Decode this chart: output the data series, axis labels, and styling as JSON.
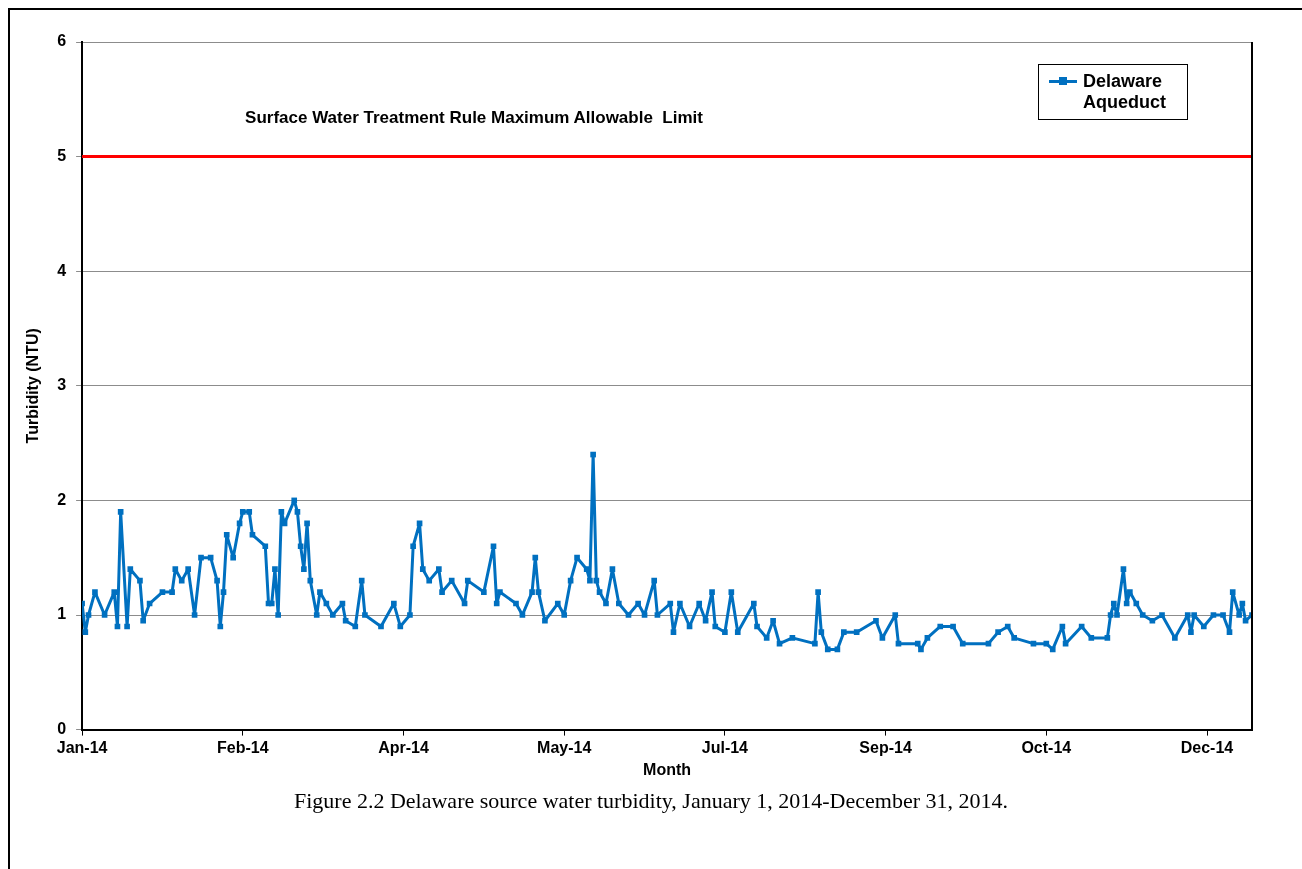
{
  "chart_data": {
    "type": "line",
    "xlabel": "Month",
    "ylabel": "Turbidity (NTU)",
    "annotations": [
      "Figure 2.2 Delaware source water turbidity, January 1, 2014-December 31, 2014."
    ],
    "ylim": [
      0,
      6
    ],
    "yticks": [
      0,
      1,
      2,
      3,
      4,
      5,
      6
    ],
    "xlim": [
      "2014-01-01",
      "2014-12-31"
    ],
    "xticks": [
      {
        "value": "2014-01-01",
        "label": "Jan-14"
      },
      {
        "value": "2014-02-20",
        "label": "Feb-14"
      },
      {
        "value": "2014-04-11",
        "label": "Apr-14"
      },
      {
        "value": "2014-05-31",
        "label": "May-14"
      },
      {
        "value": "2014-07-20",
        "label": "Jul-14"
      },
      {
        "value": "2014-09-08",
        "label": "Sep-14"
      },
      {
        "value": "2014-10-28",
        "label": "Oct-14"
      },
      {
        "value": "2014-12-17",
        "label": "Dec-14"
      }
    ],
    "grid": "y",
    "legend": "top right",
    "marker": "square",
    "line_style": "solid",
    "ref_lines": [
      {
        "axis": "y",
        "value": 5,
        "label": "Surface Water Treatment Rule Maximum Allowable  Limit",
        "color": "#ff0000"
      }
    ],
    "x": [
      "2014-01-01",
      "2014-01-02",
      "2014-01-03",
      "2014-01-05",
      "2014-01-08",
      "2014-01-11",
      "2014-01-12",
      "2014-01-13",
      "2014-01-15",
      "2014-01-16",
      "2014-01-19",
      "2014-01-20",
      "2014-01-22",
      "2014-01-26",
      "2014-01-29",
      "2014-01-30",
      "2014-02-01",
      "2014-02-03",
      "2014-02-05",
      "2014-02-07",
      "2014-02-10",
      "2014-02-12",
      "2014-02-13",
      "2014-02-14",
      "2014-02-15",
      "2014-02-17",
      "2014-02-19",
      "2014-02-20",
      "2014-02-22",
      "2014-02-23",
      "2014-02-27",
      "2014-02-28",
      "2014-03-01",
      "2014-03-02",
      "2014-03-03",
      "2014-03-04",
      "2014-03-05",
      "2014-03-08",
      "2014-03-09",
      "2014-03-10",
      "2014-03-11",
      "2014-03-12",
      "2014-03-13",
      "2014-03-15",
      "2014-03-16",
      "2014-03-18",
      "2014-03-20",
      "2014-03-23",
      "2014-03-24",
      "2014-03-27",
      "2014-03-29",
      "2014-03-30",
      "2014-04-04",
      "2014-04-08",
      "2014-04-10",
      "2014-04-13",
      "2014-04-14",
      "2014-04-16",
      "2014-04-17",
      "2014-04-19",
      "2014-04-22",
      "2014-04-23",
      "2014-04-26",
      "2014-04-30",
      "2014-05-01",
      "2014-05-06",
      "2014-05-09",
      "2014-05-10",
      "2014-05-11",
      "2014-05-16",
      "2014-05-18",
      "2014-05-21",
      "2014-05-22",
      "2014-05-23",
      "2014-05-25",
      "2014-05-29",
      "2014-05-31",
      "2014-06-02",
      "2014-06-04",
      "2014-06-07",
      "2014-06-08",
      "2014-06-09",
      "2014-06-10",
      "2014-06-11",
      "2014-06-13",
      "2014-06-15",
      "2014-06-17",
      "2014-06-20",
      "2014-06-23",
      "2014-06-25",
      "2014-06-28",
      "2014-06-29",
      "2014-07-03",
      "2014-07-04",
      "2014-07-06",
      "2014-07-09",
      "2014-07-12",
      "2014-07-14",
      "2014-07-16",
      "2014-07-17",
      "2014-07-20",
      "2014-07-22",
      "2014-07-24",
      "2014-07-29",
      "2014-07-30",
      "2014-08-02",
      "2014-08-04",
      "2014-08-06",
      "2014-08-10",
      "2014-08-17",
      "2014-08-18",
      "2014-08-19",
      "2014-08-21",
      "2014-08-24",
      "2014-08-26",
      "2014-08-30",
      "2014-09-05",
      "2014-09-07",
      "2014-09-11",
      "2014-09-12",
      "2014-09-18",
      "2014-09-19",
      "2014-09-21",
      "2014-09-25",
      "2014-09-29",
      "2014-10-02",
      "2014-10-10",
      "2014-10-13",
      "2014-10-16",
      "2014-10-18",
      "2014-10-24",
      "2014-10-28",
      "2014-10-30",
      "2014-11-02",
      "2014-11-03",
      "2014-11-08",
      "2014-11-11",
      "2014-11-16",
      "2014-11-17",
      "2014-11-18",
      "2014-11-19",
      "2014-11-21",
      "2014-11-22",
      "2014-11-23",
      "2014-11-25",
      "2014-11-27",
      "2014-11-30",
      "2014-12-03",
      "2014-12-07",
      "2014-12-11",
      "2014-12-12",
      "2014-12-13",
      "2014-12-16",
      "2014-12-19",
      "2014-12-22",
      "2014-12-24",
      "2014-12-25",
      "2014-12-27",
      "2014-12-28",
      "2014-12-29",
      "2014-12-31"
    ],
    "series": [
      {
        "name": "Delaware Aqueduct",
        "color": "#0070c0",
        "values": [
          1.1,
          0.85,
          1.0,
          1.2,
          1.0,
          1.2,
          0.9,
          1.9,
          0.9,
          1.4,
          1.3,
          0.95,
          1.1,
          1.2,
          1.2,
          1.4,
          1.3,
          1.4,
          1.0,
          1.5,
          1.5,
          1.3,
          0.9,
          1.2,
          1.7,
          1.5,
          1.8,
          1.9,
          1.9,
          1.7,
          1.6,
          1.1,
          1.1,
          1.4,
          1.0,
          1.9,
          1.8,
          2.0,
          1.9,
          1.6,
          1.4,
          1.8,
          1.3,
          1.0,
          1.2,
          1.1,
          1.0,
          1.1,
          0.95,
          0.9,
          1.3,
          1.0,
          0.9,
          1.1,
          0.9,
          1.0,
          1.6,
          1.8,
          1.4,
          1.3,
          1.4,
          1.2,
          1.3,
          1.1,
          1.3,
          1.2,
          1.6,
          1.1,
          1.2,
          1.1,
          1.0,
          1.2,
          1.5,
          1.2,
          0.95,
          1.1,
          1.0,
          1.3,
          1.5,
          1.4,
          1.3,
          2.4,
          1.3,
          1.2,
          1.1,
          1.4,
          1.1,
          1.0,
          1.1,
          1.0,
          1.3,
          1.0,
          1.1,
          0.85,
          1.1,
          0.9,
          1.1,
          0.95,
          1.2,
          0.9,
          0.85,
          1.2,
          0.85,
          1.1,
          0.9,
          0.8,
          0.95,
          0.75,
          0.8,
          0.75,
          1.2,
          0.85,
          0.7,
          0.7,
          0.85,
          0.85,
          0.95,
          0.8,
          1.0,
          0.75,
          0.75,
          0.7,
          0.8,
          0.9,
          0.9,
          0.75,
          0.75,
          0.85,
          0.9,
          0.8,
          0.75,
          0.75,
          0.7,
          0.9,
          0.75,
          0.9,
          0.8,
          0.8,
          1.0,
          1.1,
          1.0,
          1.4,
          1.1,
          1.2,
          1.1,
          1.0,
          0.95,
          1.0,
          0.8,
          1.0,
          0.85,
          1.0,
          0.9,
          1.0,
          1.0,
          0.85,
          1.2,
          1.0,
          1.1,
          0.95,
          1.0
        ]
      }
    ]
  }
}
